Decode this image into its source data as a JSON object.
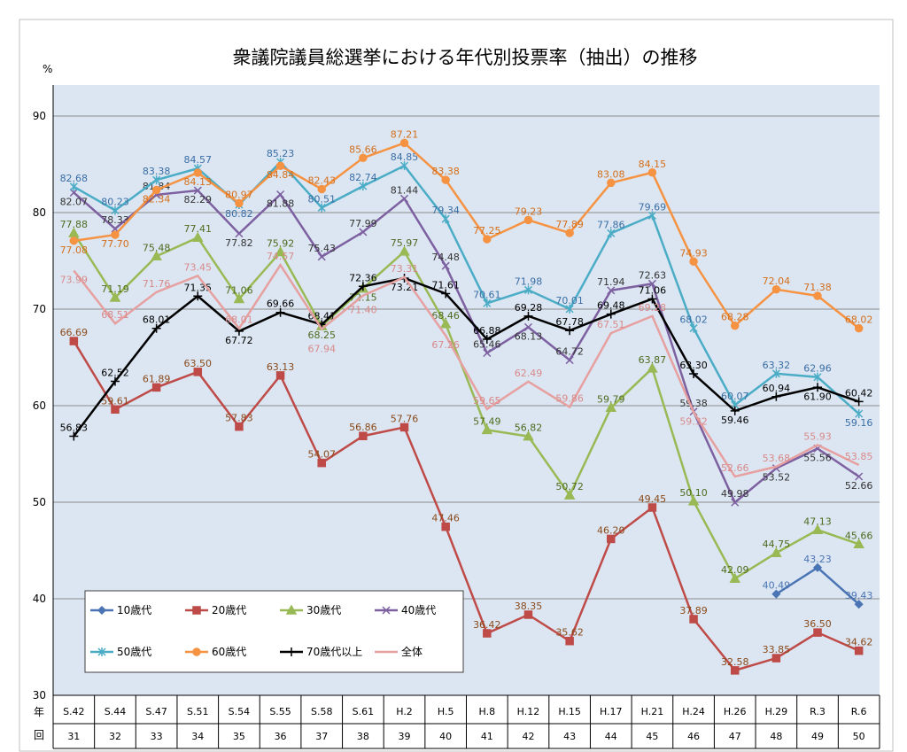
{
  "chart_data": {
    "type": "line",
    "title": "衆議院議員総選挙における年代別投票率（抽出）の推移",
    "ylabel": "%",
    "ylim": [
      30,
      90
    ],
    "yticks": [
      30,
      40,
      50,
      60,
      70,
      80,
      90
    ],
    "grid": true,
    "legend_placement": "bottom-left",
    "row_labels": [
      "年",
      "回"
    ],
    "categories": [
      "S.42",
      "S.44",
      "S.47",
      "S.51",
      "S.54",
      "S.55",
      "S.58",
      "S.61",
      "H.2",
      "H.5",
      "H.8",
      "H.12",
      "H.15",
      "H.17",
      "H.21",
      "H.24",
      "H.26",
      "H.29",
      "R.3",
      "R.6"
    ],
    "sessions": [
      "31",
      "32",
      "33",
      "34",
      "35",
      "36",
      "37",
      "38",
      "39",
      "40",
      "41",
      "42",
      "43",
      "44",
      "45",
      "46",
      "47",
      "48",
      "49",
      "50"
    ],
    "series": [
      {
        "name": "10歳代",
        "color": "#4a74b4",
        "marker": "diamond",
        "values": [
          null,
          null,
          null,
          null,
          null,
          null,
          null,
          null,
          null,
          null,
          null,
          null,
          null,
          null,
          null,
          null,
          null,
          40.49,
          43.23,
          39.43
        ]
      },
      {
        "name": "20歳代",
        "color": "#be4b48",
        "marker": "square",
        "values": [
          66.69,
          59.61,
          61.89,
          63.5,
          57.83,
          63.13,
          54.07,
          56.86,
          57.76,
          47.46,
          36.42,
          38.35,
          35.62,
          46.2,
          49.45,
          37.89,
          32.58,
          33.85,
          36.5,
          34.62
        ]
      },
      {
        "name": "30歳代",
        "color": "#98b954",
        "marker": "triangle",
        "values": [
          77.88,
          71.19,
          75.48,
          77.41,
          71.06,
          75.92,
          68.25,
          72.15,
          75.97,
          68.46,
          57.49,
          56.82,
          50.72,
          59.79,
          63.87,
          50.1,
          42.09,
          44.75,
          47.13,
          45.66
        ]
      },
      {
        "name": "40歳代",
        "color": "#7d60a0",
        "marker": "x",
        "values": [
          82.07,
          78.33,
          81.84,
          82.29,
          77.82,
          81.88,
          75.43,
          77.99,
          81.44,
          74.48,
          65.46,
          68.13,
          64.72,
          71.94,
          72.63,
          59.38,
          49.98,
          53.52,
          55.56,
          52.66
        ]
      },
      {
        "name": "50歳代",
        "color": "#4bacc6",
        "marker": "star",
        "values": [
          82.68,
          80.23,
          83.38,
          84.57,
          80.82,
          85.23,
          80.51,
          82.74,
          84.85,
          79.34,
          70.61,
          71.98,
          70.01,
          77.86,
          79.69,
          68.02,
          60.07,
          63.32,
          62.96,
          59.16
        ]
      },
      {
        "name": "60歳代",
        "color": "#f59343",
        "marker": "circle",
        "values": [
          77.08,
          77.7,
          82.34,
          84.13,
          80.97,
          84.84,
          82.43,
          85.66,
          87.21,
          83.38,
          77.25,
          79.23,
          77.89,
          83.08,
          84.15,
          74.93,
          68.28,
          72.04,
          71.38,
          68.02
        ]
      },
      {
        "name": "70歳代以上",
        "color": "#000000",
        "marker": "plus",
        "values": [
          56.83,
          62.52,
          68.01,
          71.35,
          67.72,
          69.66,
          68.41,
          72.36,
          73.21,
          71.61,
          66.88,
          69.28,
          67.78,
          69.48,
          71.06,
          63.3,
          59.46,
          60.94,
          61.9,
          60.42
        ]
      },
      {
        "name": "全体",
        "color": "#e6a0a0",
        "marker": "none",
        "values": [
          73.99,
          68.51,
          71.76,
          73.45,
          68.01,
          74.57,
          67.94,
          71.4,
          73.31,
          67.26,
          59.65,
          62.49,
          59.86,
          67.51,
          69.28,
          59.32,
          52.66,
          53.68,
          55.93,
          53.85
        ]
      }
    ],
    "colors": {
      "plot_background": "#dce6f2",
      "label_blue": "#3a6ea5"
    }
  }
}
